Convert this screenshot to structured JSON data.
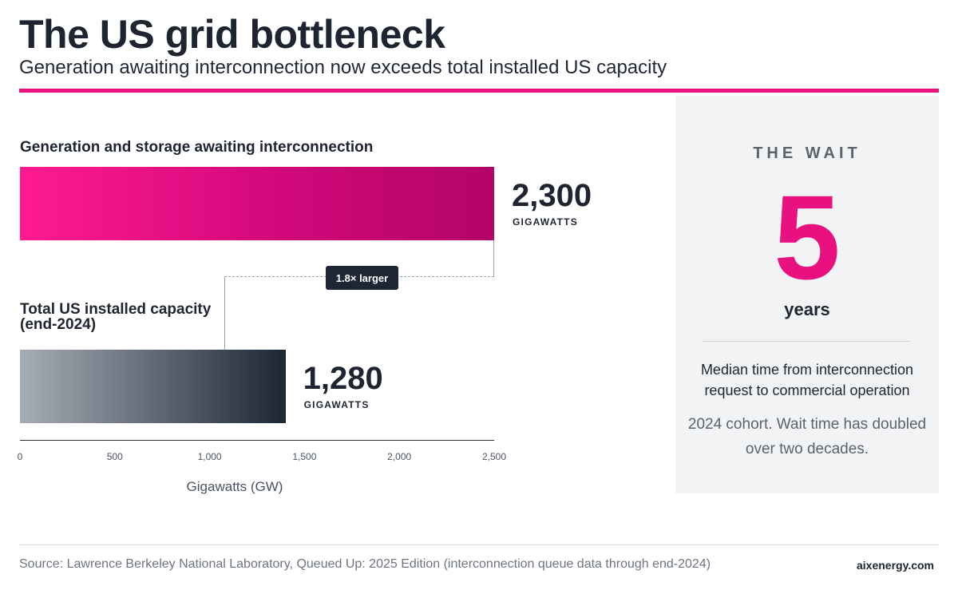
{
  "header": {
    "title": "The US grid bottleneck",
    "subtitle": "Generation awaiting interconnection now exceeds total installed US capacity"
  },
  "chart_data": {
    "type": "bar",
    "orientation": "horizontal",
    "categories": [
      "Generation and storage awaiting interconnection",
      "Total US installed capacity (end-2024)"
    ],
    "values": [
      2300,
      1280
    ],
    "value_labels": [
      "2,300",
      "1,280"
    ],
    "value_unit": "GIGAWATTS",
    "xlabel": "Gigawatts (GW)",
    "xlim": [
      0,
      2500
    ],
    "xticks": [
      0,
      500,
      1000,
      1500,
      2000,
      2500
    ],
    "xtick_labels": [
      "0",
      "500",
      "1,000",
      "1,500",
      "2,000",
      "2,500"
    ],
    "annotation": "1.8× larger",
    "grid": false,
    "colors": {
      "queue_start": "#ff1a92",
      "queue_end": "#b30468",
      "installed_start": "#a7adb6",
      "installed_end": "#1d2634"
    }
  },
  "panel": {
    "heading": "THE WAIT",
    "number": "5",
    "unit": "years",
    "description": "Median time from interconnection request to commercial operation",
    "note": "2024 cohort. Wait time has doubled over two decades."
  },
  "footer": {
    "source": "Source: Lawrence Berkeley National Laboratory, Queued Up: 2025 Edition (interconnection queue data through end-2024)",
    "brand": "aixenergy.com"
  }
}
